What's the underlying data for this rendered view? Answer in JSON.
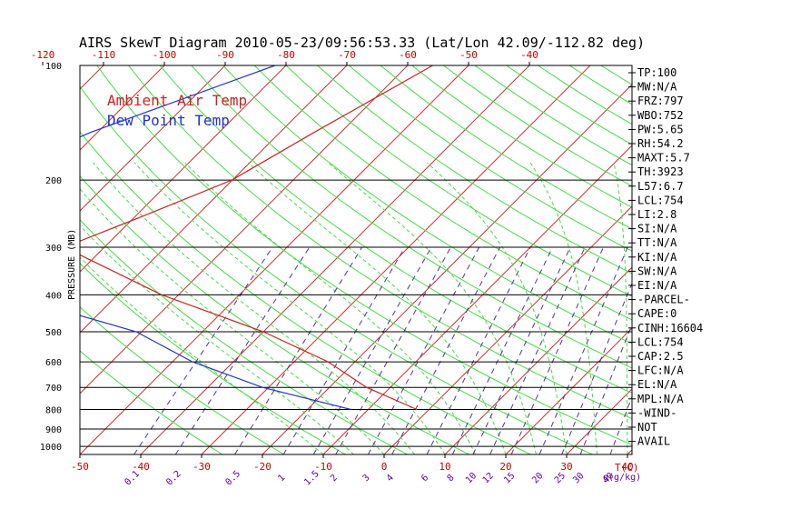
{
  "title": "AIRS SkewT Diagram 2010-05-23/09:56:53.33 (Lat/Lon 42.09/-112.82 deg)",
  "legend": [
    {
      "label": "Ambient Air Temp",
      "color": "#cc2222"
    },
    {
      "label": "Dew Point Temp",
      "color": "#2233cc"
    }
  ],
  "colors": {
    "isotherm": "#cc3333",
    "dry_adiabat": "#44dd44",
    "moist_adiabat": "#44dd44",
    "mixing_ratio": "#553399",
    "temperature": "#cc2222",
    "dewpoint": "#2233cc",
    "axis": "#000000"
  },
  "chart_data": {
    "type": "line",
    "title": "AIRS SkewT Diagram 2010-05-23/09:56:53.33 (Lat/Lon 42.09/-112.82 deg)",
    "ylabel": "PRESSURE (MB)",
    "xlabel": "T(C)",
    "mixing_ratio_label": "g(g/kg)",
    "y_scale": "log",
    "ylim": [
      1050,
      100
    ],
    "pressure_ticks": [
      100,
      200,
      300,
      400,
      500,
      600,
      700,
      800,
      900,
      1000
    ],
    "top_temp_ticks": [
      -120,
      -110,
      -100,
      -90,
      -80,
      -70,
      -60,
      -50,
      -40
    ],
    "bottom_temp_ticks": [
      -50,
      -40,
      -30,
      -20,
      -10,
      0,
      10,
      20,
      30,
      40
    ],
    "mixing_ratio_ticks": [
      "0.1",
      "0.2",
      "0.5",
      "1",
      "1.5",
      "2",
      "3",
      "4",
      "6",
      "8",
      "10",
      "12",
      "15",
      "20",
      "25",
      "30",
      "40"
    ],
    "series": [
      {
        "name": "Ambient Air Temp",
        "pressure": [
          100,
          150,
          200,
          250,
          300,
          400,
          500,
          600,
          700,
          800
        ],
        "values": [
          -55.9,
          -64.4,
          -70.1,
          -79.0,
          -86.6,
          -62.8,
          -40.0,
          -24.4,
          -13.9,
          -2.0
        ]
      },
      {
        "name": "Dew Point Temp",
        "pressure": [
          100,
          150,
          200,
          250,
          300,
          400,
          500,
          600,
          700,
          800
        ],
        "values": [
          -81.8,
          -101.2,
          -111.1,
          -113.1,
          -111.2,
          -88.0,
          -60.9,
          -46.7,
          -31.0,
          -12.8
        ]
      }
    ],
    "grid": true
  },
  "indices": [
    "TP:100",
    "MW:N/A",
    "FRZ:797",
    "WBO:752",
    "PW:5.65",
    "RH:54.2",
    "MAXT:5.7",
    "TH:3923",
    "L57:6.7",
    "LCL:754",
    "LI:2.8",
    "SI:N/A",
    "TT:N/A",
    "KI:N/A",
    "SW:N/A",
    "EI:N/A",
    "-PARCEL-",
    "CAPE:0",
    "CINH:16604",
    "LCL:754",
    "CAP:2.5",
    "LFC:N/A",
    "EL:N/A",
    "MPL:N/A",
    "-WIND-",
    "NOT",
    "AVAIL"
  ]
}
